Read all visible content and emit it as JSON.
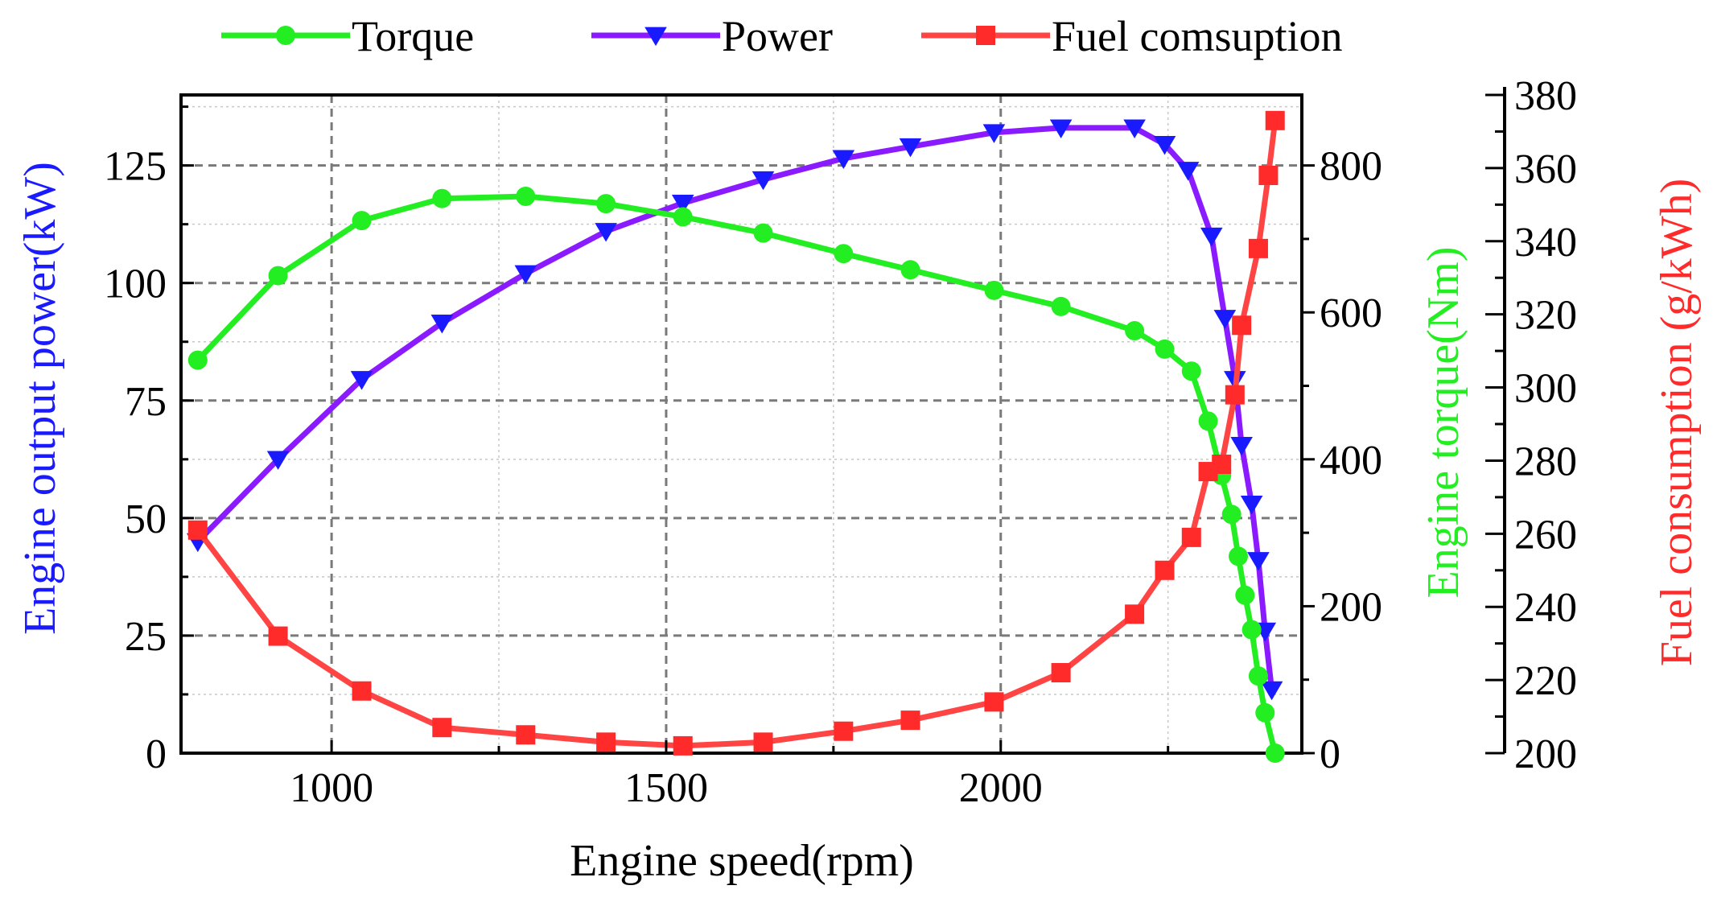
{
  "chart_data": {
    "type": "line",
    "title": "",
    "xlabel": "Engine speed(rpm)",
    "xlim": [
      775,
      2450
    ],
    "xticks": [
      1000,
      1500,
      2000
    ],
    "axes": {
      "power": {
        "label": "Engine output power(kW)",
        "color": "#1a1aff",
        "lim": [
          0,
          140
        ],
        "ticks": [
          0,
          25,
          50,
          75,
          100,
          125
        ],
        "tick_labels": [
          "0",
          "25",
          "50",
          "75",
          "100",
          "125"
        ]
      },
      "torque": {
        "label": "Engine torque(Nm)",
        "color": "#22ee22",
        "lim": [
          0,
          896
        ],
        "ticks": [
          0,
          200,
          400,
          600,
          800
        ],
        "tick_labels": [
          "0",
          "200",
          "400",
          "600",
          "800"
        ]
      },
      "fuel": {
        "label": "Fuel consumption (g/kWh)",
        "color": "#ff2a2a",
        "lim": [
          200,
          380
        ],
        "ticks": [
          200,
          220,
          240,
          260,
          280,
          300,
          320,
          340,
          360,
          380
        ],
        "tick_labels": [
          "200",
          "220",
          "240",
          "260",
          "280",
          "300",
          "320",
          "340",
          "360",
          "380"
        ]
      }
    },
    "series": [
      {
        "name": "Torque",
        "axis": "torque",
        "line_color": "#22ee22",
        "marker_color": "#22ee22",
        "marker": "circle",
        "x": [
          800,
          920,
          1045,
          1165,
          1290,
          1410,
          1525,
          1645,
          1765,
          1865,
          1990,
          2090,
          2200,
          2245,
          2285,
          2310,
          2330,
          2345,
          2355,
          2365,
          2375,
          2385,
          2395,
          2410
        ],
        "y": [
          535,
          650,
          725,
          755,
          758,
          748,
          730,
          708,
          680,
          658,
          630,
          608,
          575,
          550,
          520,
          452,
          378,
          325,
          268,
          215,
          168,
          105,
          55,
          0
        ]
      },
      {
        "name": "Power",
        "axis": "power",
        "line_color": "#8a1aff",
        "marker_color": "#1a1aff",
        "marker": "triangle-down",
        "x": [
          800,
          920,
          1045,
          1165,
          1290,
          1410,
          1525,
          1645,
          1765,
          1865,
          1990,
          2090,
          2200,
          2245,
          2280,
          2315,
          2335,
          2350,
          2360,
          2375,
          2385,
          2395,
          2405
        ],
        "y": [
          45,
          62.5,
          79.5,
          91.5,
          102,
          111,
          117,
          122,
          126.5,
          129,
          132,
          133,
          133,
          129.5,
          124,
          110,
          92.5,
          79.5,
          65.5,
          53,
          41,
          26,
          13.5
        ]
      },
      {
        "name": "Fuel comsuption",
        "axis": "fuel",
        "line_color": "#ff4444",
        "marker_color": "#ff2a2a",
        "marker": "square",
        "x": [
          800,
          920,
          1045,
          1165,
          1290,
          1410,
          1525,
          1645,
          1765,
          1865,
          1990,
          2090,
          2200,
          2245,
          2285,
          2310,
          2330,
          2350,
          2360,
          2385,
          2400,
          2410
        ],
        "y": [
          261,
          232,
          217,
          207,
          205,
          203,
          202,
          203,
          206,
          209,
          214,
          222,
          238,
          250,
          259,
          277,
          279,
          298,
          317,
          338,
          358,
          373
        ]
      }
    ],
    "legend": {
      "placement": "top",
      "entries": [
        "Torque",
        "Power",
        "Fuel comsuption"
      ]
    },
    "grid": true
  }
}
